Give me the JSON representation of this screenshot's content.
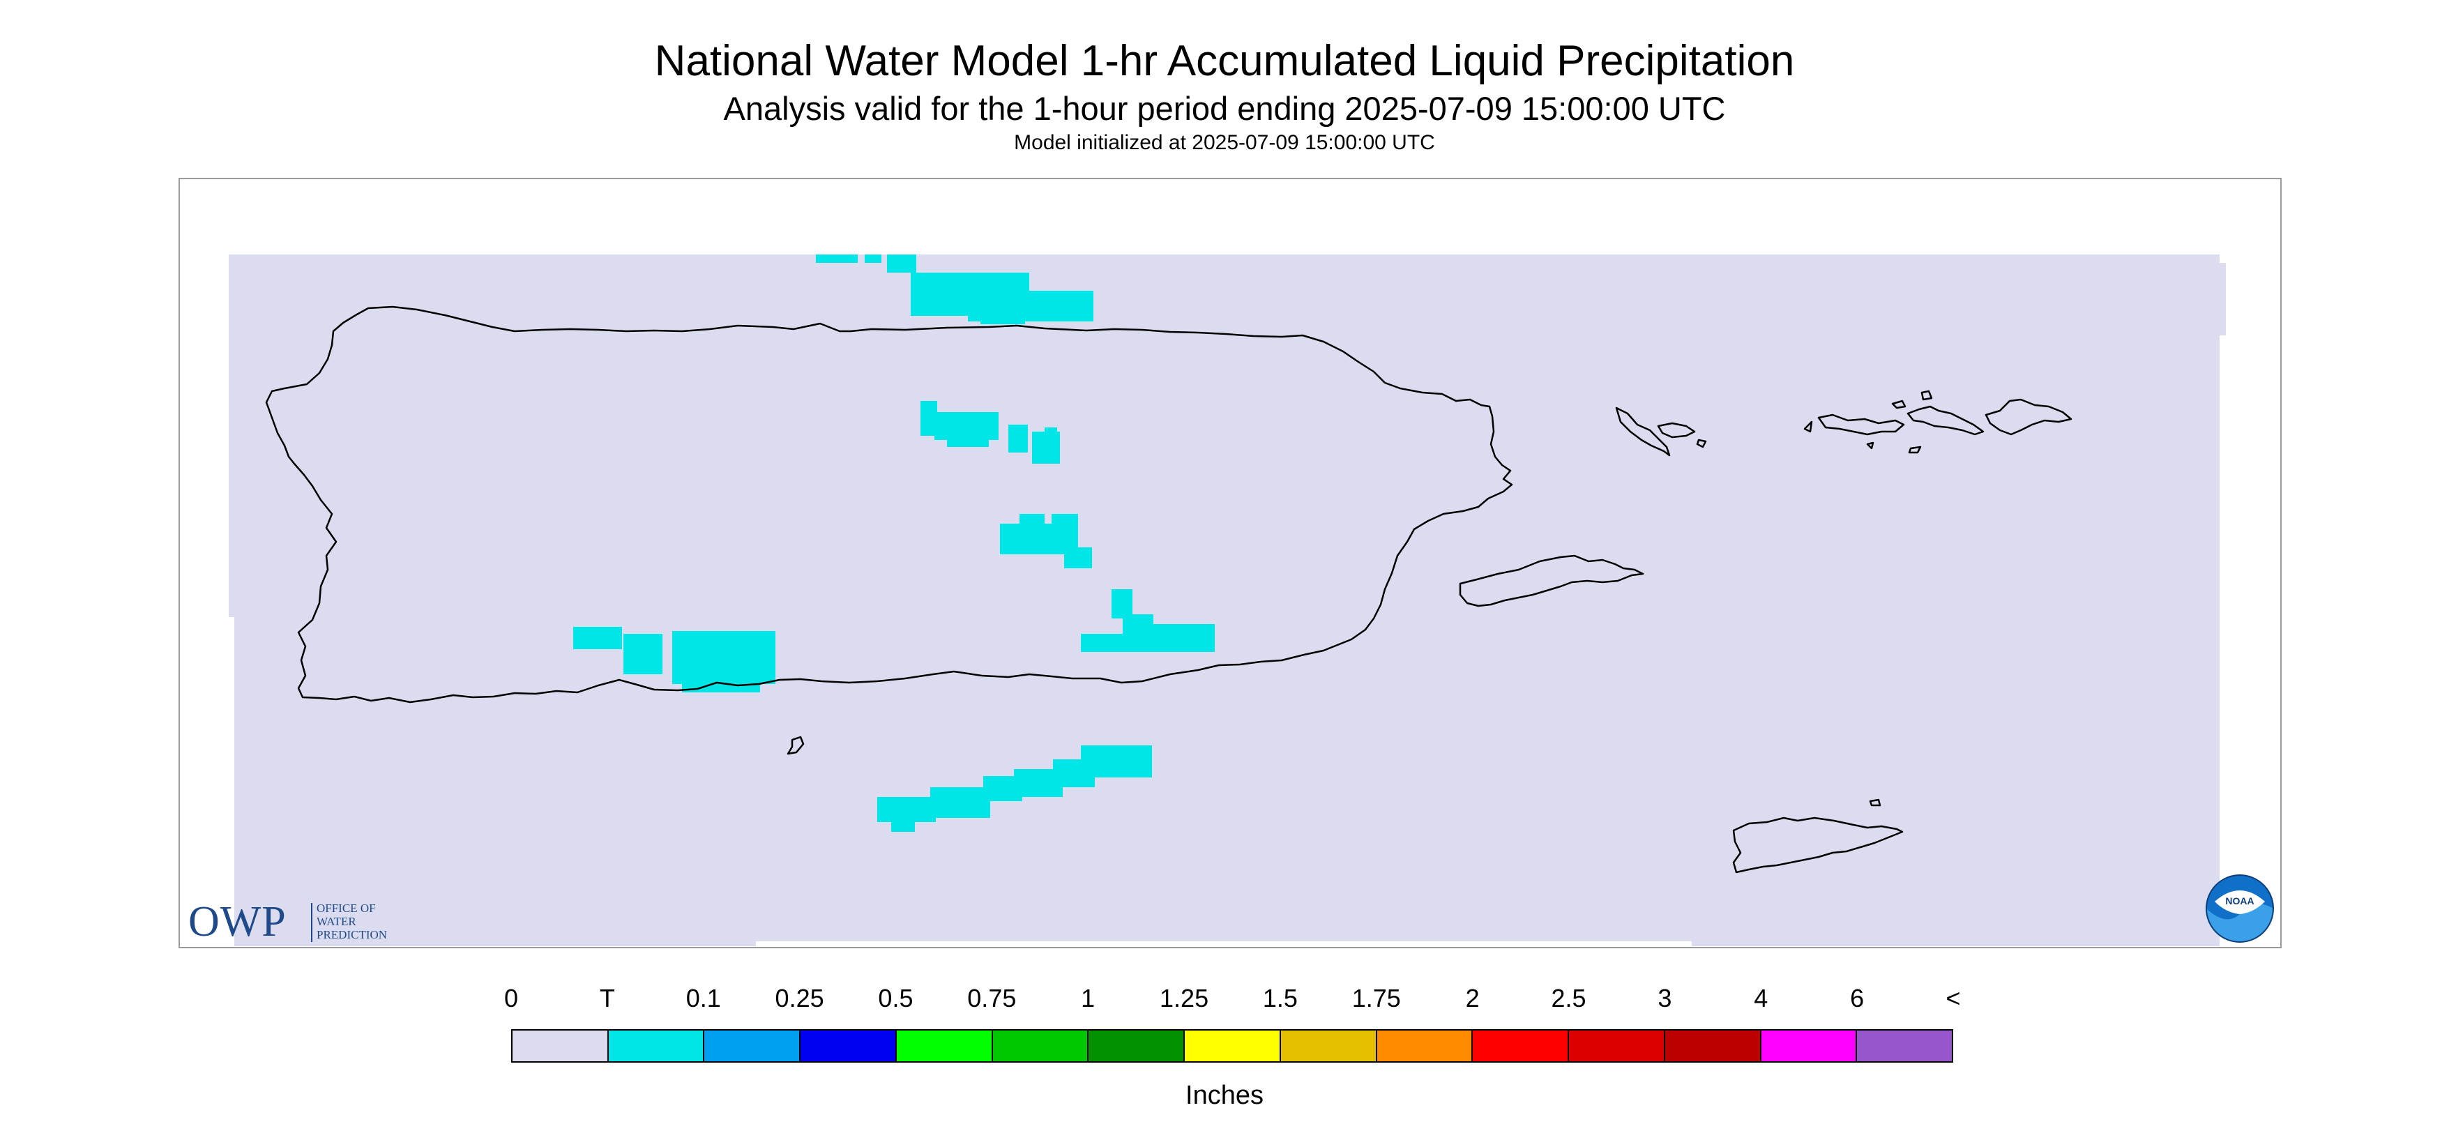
{
  "header": {
    "title": "National Water Model 1-hr Accumulated Liquid Precipitation",
    "subtitle": "Analysis valid for the 1-hour period ending 2025-07-09 15:00:00 UTC",
    "initialized": "Model initialized at 2025-07-09 15:00:00 UTC"
  },
  "map": {
    "region": "Puerto Rico and Virgin Islands",
    "background_color": "#dcdcf0",
    "coastline_color": "#000000",
    "precip_color": "#00e5e5",
    "precip_category": "T"
  },
  "logos": {
    "owp_big": "OWP",
    "owp_lines": [
      "OFFICE OF",
      "WATER",
      "PREDICTION"
    ],
    "noaa_text": "NOAA"
  },
  "legend": {
    "labels": [
      "0",
      "T",
      "0.1",
      "0.25",
      "0.5",
      "0.75",
      "1",
      "1.25",
      "1.5",
      "1.75",
      "2",
      "2.5",
      "3",
      "4",
      "6",
      "<"
    ],
    "colors": [
      "#dcdcf0",
      "#00e5e5",
      "#00a0f0",
      "#0000f0",
      "#00ff00",
      "#00c800",
      "#009000",
      "#ffff00",
      "#e6bf00",
      "#ff8c00",
      "#ff0000",
      "#dd0000",
      "#bb0000",
      "#ff00ff",
      "#9955cc"
    ],
    "units": "Inches"
  }
}
